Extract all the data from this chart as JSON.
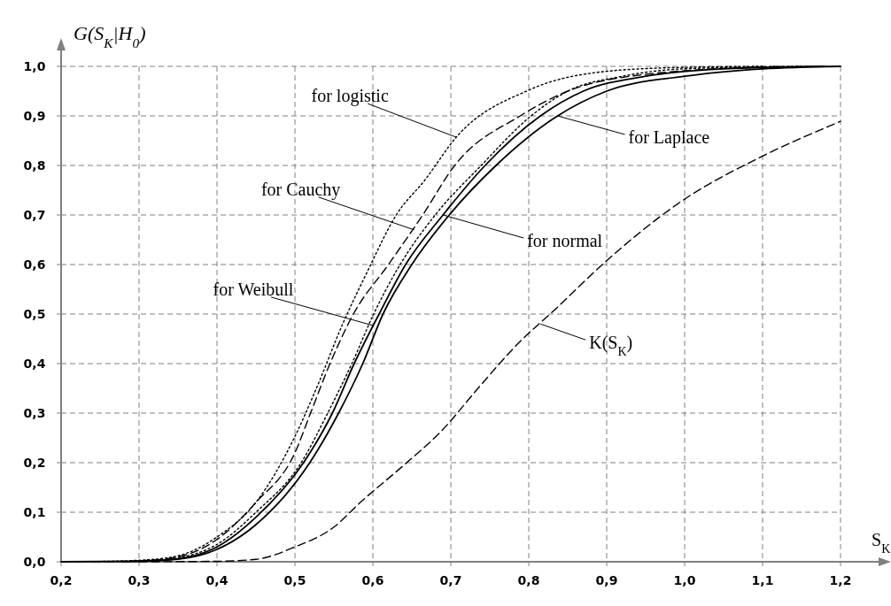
{
  "chart_data": {
    "type": "line",
    "xlabel": "S$_{K}$",
    "ylabel": "G(S$_{K}$|H$_{0}$)",
    "xlim": [
      0.2,
      1.2
    ],
    "ylim": [
      0,
      1
    ],
    "xticks": [
      {
        "value": 0.2,
        "label": "0,2"
      },
      {
        "value": 0.3,
        "label": "0,3"
      },
      {
        "value": 0.4,
        "label": "0,4"
      },
      {
        "value": 0.5,
        "label": "0,5"
      },
      {
        "value": 0.6,
        "label": "0,6"
      },
      {
        "value": 0.7,
        "label": "0,7"
      },
      {
        "value": 0.8,
        "label": "0,8"
      },
      {
        "value": 0.9,
        "label": "0,9"
      },
      {
        "value": 1.0,
        "label": "1,0"
      },
      {
        "value": 1.1,
        "label": "1,1"
      },
      {
        "value": 1.2,
        "label": "1,2"
      }
    ],
    "yticks": [
      {
        "value": 0,
        "label": "0,0"
      },
      {
        "value": 0.1,
        "label": "0,1"
      },
      {
        "value": 0.2,
        "label": "0,2"
      },
      {
        "value": 0.3,
        "label": "0,3"
      },
      {
        "value": 0.4,
        "label": "0,4"
      },
      {
        "value": 0.5,
        "label": "0,5"
      },
      {
        "value": 0.6,
        "label": "0,6"
      },
      {
        "value": 0.7,
        "label": "0,7"
      },
      {
        "value": 0.8,
        "label": "0,8"
      },
      {
        "value": 0.9,
        "label": "0,9"
      },
      {
        "value": 1.0,
        "label": "1,0"
      }
    ],
    "grid": true,
    "series": [
      {
        "color": "#000000",
        "line_style": "dotted",
        "x": [
          0.22,
          0.3,
          0.35,
          0.4,
          0.45,
          0.5,
          0.527,
          0.561,
          0.593,
          0.63,
          0.667,
          0.707,
          0.8,
          0.9,
          1.0,
          1.1
        ],
        "values": [
          0,
          0.003,
          0.012,
          0.05,
          0.12,
          0.253,
          0.348,
          0.479,
          0.586,
          0.7,
          0.771,
          0.857,
          0.952,
          0.99,
          0.998,
          1
        ]
      },
      {
        "color": "#000000",
        "line_style": "dashed",
        "x": [
          0.24,
          0.3,
          0.35,
          0.4,
          0.45,
          0.5,
          0.52,
          0.545,
          0.575,
          0.62,
          0.664,
          0.705,
          0.789,
          0.85,
          0.93,
          1.12
        ],
        "values": [
          0,
          0.002,
          0.01,
          0.045,
          0.12,
          0.22,
          0.3,
          0.4,
          0.5,
          0.6,
          0.7,
          0.8,
          0.9,
          0.95,
          0.98,
          1
        ]
      },
      {
        "color": "#000000",
        "line_style": "dotted",
        "x": [
          0.26,
          0.3,
          0.35,
          0.4,
          0.45,
          0.508,
          0.542,
          0.573,
          0.601,
          0.635,
          0.68,
          0.739,
          0.803,
          0.85,
          0.92,
          1.0,
          1.15
        ],
        "values": [
          0,
          0.001,
          0.008,
          0.035,
          0.1,
          0.2,
          0.3,
          0.4,
          0.5,
          0.6,
          0.7,
          0.8,
          0.9,
          0.95,
          0.98,
          0.995,
          1
        ]
      },
      {
        "color": "#000000",
        "line_style": "solid",
        "x": [
          0.28,
          0.3,
          0.35,
          0.4,
          0.45,
          0.511,
          0.548,
          0.576,
          0.608,
          0.642,
          0.69,
          0.744,
          0.815,
          0.87,
          0.95,
          1.05,
          1.18
        ],
        "values": [
          0,
          0.001,
          0.006,
          0.03,
          0.09,
          0.2,
          0.3,
          0.4,
          0.5,
          0.6,
          0.7,
          0.8,
          0.9,
          0.95,
          0.98,
          0.995,
          1
        ]
      },
      {
        "color": "#000000",
        "line_style": "solid",
        "x": [
          0.2,
          0.3,
          0.35,
          0.4,
          0.45,
          0.519,
          0.556,
          0.587,
          0.613,
          0.65,
          0.698,
          0.758,
          0.837,
          0.9,
          1.0,
          1.1,
          1.2
        ],
        "values": [
          0,
          0.001,
          0.005,
          0.025,
          0.075,
          0.2,
          0.3,
          0.4,
          0.5,
          0.6,
          0.7,
          0.8,
          0.9,
          0.95,
          0.98,
          0.995,
          1
        ]
      },
      {
        "color": "#000000",
        "line_style": "dashed",
        "x": [
          0.3,
          0.4,
          0.45,
          0.5,
          0.55,
          0.584,
          0.636,
          0.688,
          0.737,
          0.786,
          0.837,
          0.891,
          1.0,
          1.099,
          1.2
        ],
        "values": [
          0,
          0.001,
          0.005,
          0.03,
          0.07,
          0.12,
          0.19,
          0.264,
          0.354,
          0.44,
          0.514,
          0.595,
          0.732,
          0.818,
          0.889
        ]
      }
    ],
    "annotations": [
      {
        "text": "for logistic",
        "x": 0.707,
        "y": 0.857
      },
      {
        "text": "for Cauchy",
        "x": 0.653,
        "y": 0.67
      },
      {
        "text": "for Weibull",
        "x": 0.6,
        "y": 0.477
      },
      {
        "text": "for normal",
        "x": 0.69,
        "y": 0.7
      },
      {
        "text": "for Laplace",
        "x": 0.837,
        "y": 0.9
      },
      {
        "text": "K(S$_{K}$)",
        "x": 0.815,
        "y": 0.48
      }
    ]
  }
}
